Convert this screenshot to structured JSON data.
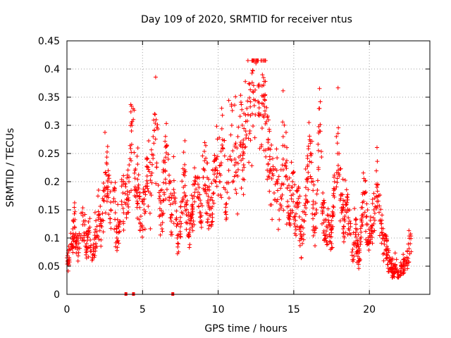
{
  "chart_data": {
    "type": "scatter",
    "title": "Day 109 of 2020, SRMTID for receiver ntus",
    "xlabel": "GPS time / hours",
    "ylabel": "SRMTID / TECUs",
    "xlim": [
      0,
      24
    ],
    "ylim": [
      0,
      0.45
    ],
    "x_ticks": [
      0,
      5,
      10,
      15,
      20
    ],
    "x_tick_labels": [
      "0",
      "5",
      "10",
      "15",
      "20"
    ],
    "y_ticks": [
      0,
      0.05,
      0.1,
      0.15,
      0.2,
      0.25,
      0.3,
      0.35,
      0.4,
      0.45
    ],
    "y_tick_labels": [
      "0",
      "0.05",
      "0.1",
      "0.15",
      "0.2",
      "0.25",
      "0.3",
      "0.35",
      "0.4",
      "0.45"
    ],
    "grid": true,
    "marker": "plus",
    "series": [
      {
        "color": "#ff0000",
        "x": [
          0.1,
          0.3,
          0.5,
          0.7,
          0.9,
          1.1,
          1.3,
          1.5,
          1.7,
          1.9,
          2.1,
          2.3,
          2.5,
          2.7,
          2.9,
          3.1,
          3.3,
          3.5,
          3.7,
          3.9,
          4.1,
          4.3,
          4.5,
          4.7,
          4.9,
          5.1,
          5.3,
          5.5,
          5.7,
          5.9,
          6.1,
          6.3,
          6.5,
          6.7,
          6.9,
          7.1,
          7.3,
          7.5,
          7.7,
          7.9,
          8.1,
          8.3,
          8.5,
          8.7,
          8.9,
          9.1,
          9.3,
          9.5,
          9.7,
          9.9,
          10.1,
          10.3,
          10.5,
          10.7,
          10.9,
          11.1,
          11.3,
          11.5,
          11.7,
          11.9,
          12.1,
          12.3,
          12.5,
          12.7,
          12.9,
          13.1,
          13.3,
          13.5,
          13.7,
          13.9,
          14.1,
          14.3,
          14.5,
          14.7,
          14.9,
          15.1,
          15.3,
          15.5,
          15.7,
          15.9,
          16.1,
          16.3,
          16.5,
          16.7,
          16.9,
          17.1,
          17.3,
          17.5,
          17.7,
          17.9,
          18.1,
          18.3,
          18.5,
          18.7,
          18.9,
          19.1,
          19.3,
          19.5,
          19.7,
          19.9,
          20.1,
          20.3,
          20.5,
          20.7,
          20.9,
          21.1,
          21.3,
          21.5,
          21.7,
          21.9,
          22.1,
          22.3,
          22.5,
          22.7
        ],
        "y": [
          0.06,
          0.09,
          0.12,
          0.08,
          0.1,
          0.13,
          0.09,
          0.11,
          0.07,
          0.1,
          0.14,
          0.12,
          0.19,
          0.2,
          0.15,
          0.17,
          0.1,
          0.13,
          0.18,
          0.16,
          0.2,
          0.3,
          0.22,
          0.19,
          0.12,
          0.15,
          0.21,
          0.18,
          0.28,
          0.31,
          0.17,
          0.14,
          0.22,
          0.24,
          0.13,
          0.18,
          0.1,
          0.12,
          0.19,
          0.16,
          0.11,
          0.15,
          0.2,
          0.17,
          0.13,
          0.22,
          0.19,
          0.14,
          0.18,
          0.24,
          0.2,
          0.26,
          0.16,
          0.22,
          0.3,
          0.24,
          0.21,
          0.27,
          0.25,
          0.33,
          0.29,
          0.36,
          0.41,
          0.34,
          0.37,
          0.32,
          0.27,
          0.22,
          0.18,
          0.2,
          0.16,
          0.24,
          0.21,
          0.14,
          0.19,
          0.12,
          0.17,
          0.1,
          0.13,
          0.2,
          0.25,
          0.12,
          0.15,
          0.33,
          0.16,
          0.1,
          0.14,
          0.09,
          0.2,
          0.25,
          0.17,
          0.12,
          0.16,
          0.13,
          0.08,
          0.11,
          0.06,
          0.14,
          0.18,
          0.09,
          0.12,
          0.15,
          0.19,
          0.13,
          0.1,
          0.08,
          0.06,
          0.04,
          0.05,
          0.03,
          0.04,
          0.05,
          0.06,
          0.09
        ],
        "values_note": ""
      },
      {
        "color": "#ff0000",
        "x": [
          3.9,
          4.4,
          7.0
        ],
        "y": [
          0,
          0,
          0
        ]
      }
    ]
  }
}
